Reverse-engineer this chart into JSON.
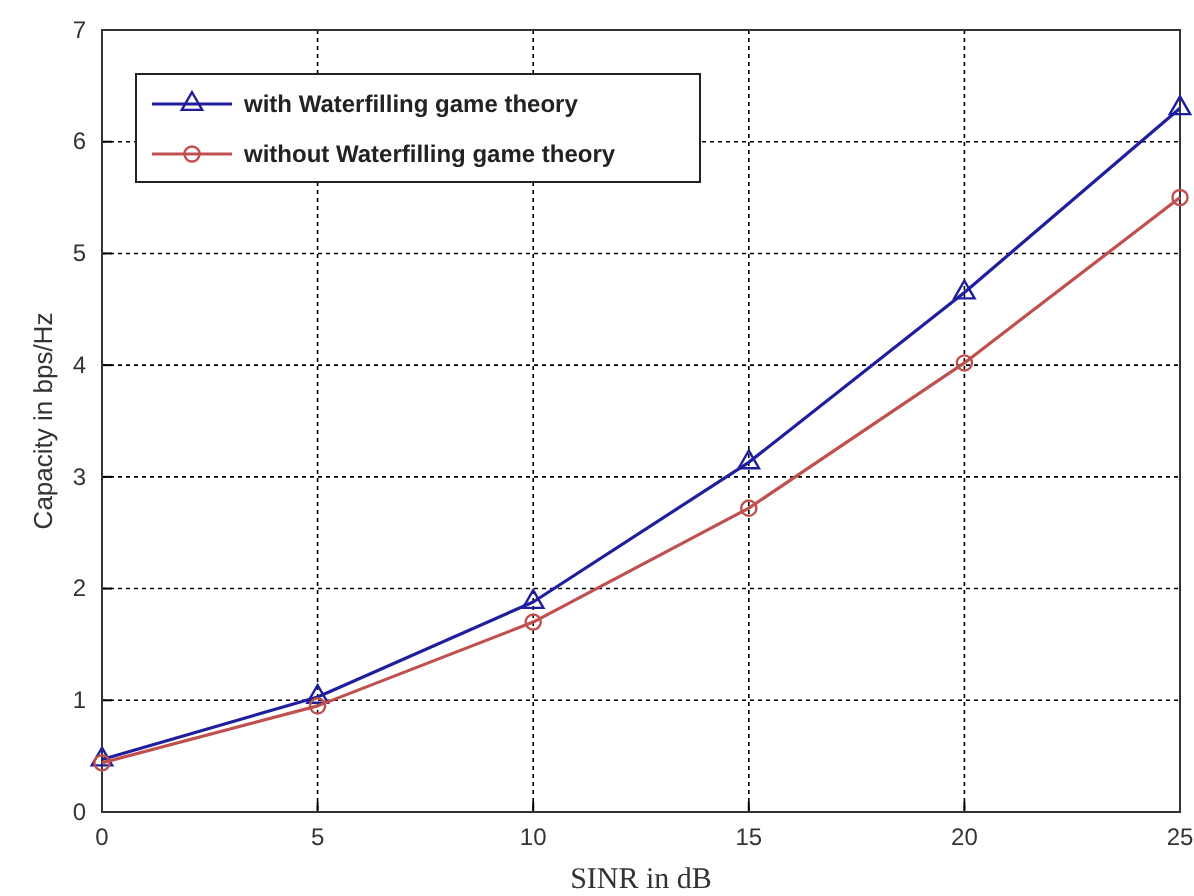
{
  "chart_data": {
    "type": "line",
    "xlabel": "SINR in dB",
    "ylabel": "Capacity in bps/Hz",
    "x": [
      0,
      5,
      10,
      15,
      20,
      25
    ],
    "series": [
      {
        "name": "with Waterfilling game theory",
        "color": "#1f1f9e",
        "marker": "triangle",
        "values": [
          0.47,
          1.03,
          1.88,
          3.13,
          4.65,
          6.3
        ]
      },
      {
        "name": "without Waterfilling game theory",
        "color": "#c0504d",
        "marker": "circle",
        "values": [
          0.44,
          0.95,
          1.7,
          2.72,
          4.02,
          5.5
        ]
      }
    ],
    "xlim": [
      0,
      25
    ],
    "xticks": [
      0,
      5,
      10,
      15,
      20,
      25
    ],
    "ylim": [
      0,
      7
    ],
    "yticks": [
      0,
      1,
      2,
      3,
      4,
      5,
      6,
      7
    ],
    "grid": true,
    "legend": "top left",
    "line_style": "solid"
  }
}
